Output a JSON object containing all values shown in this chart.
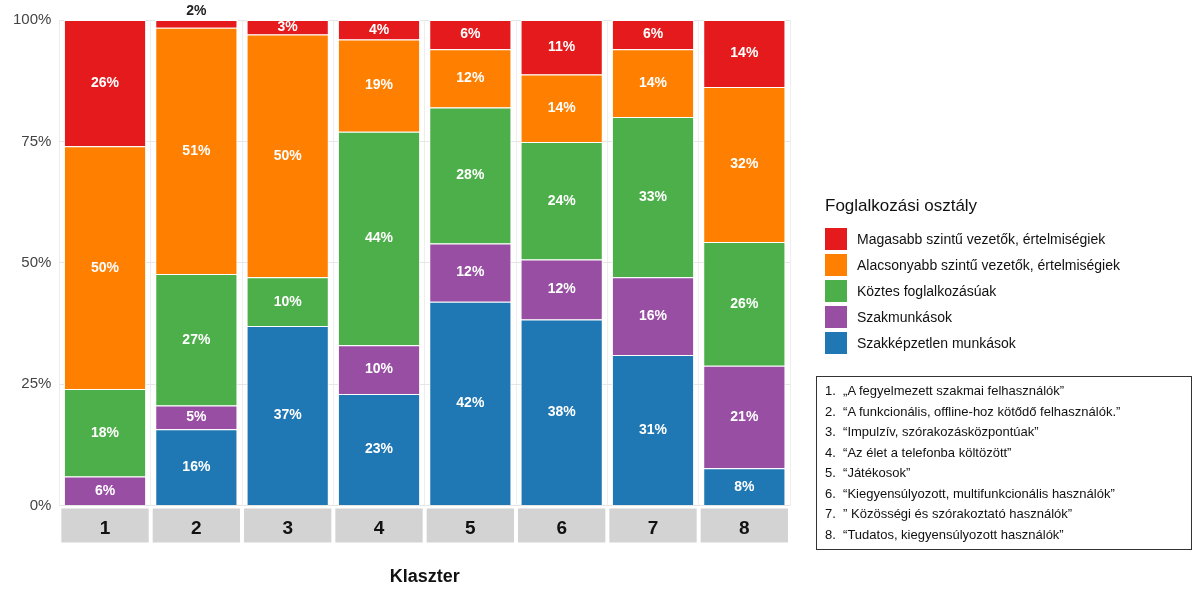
{
  "chart_data": {
    "type": "bar",
    "stacked": true,
    "xlabel": "Klaszter",
    "legend_title": "Foglalkozási osztály",
    "legend": "right",
    "categories": [
      "1",
      "2",
      "3",
      "4",
      "5",
      "6",
      "7",
      "8"
    ],
    "ylim": [
      0,
      100
    ],
    "yticks": [
      {
        "value": 0,
        "label": "0%"
      },
      {
        "value": 25,
        "label": "25%"
      },
      {
        "value": 50,
        "label": "50%"
      },
      {
        "value": 75,
        "label": "75%"
      },
      {
        "value": 100,
        "label": "100%"
      }
    ],
    "grid": true,
    "series": [
      {
        "name": "Szakképzetlen munkások",
        "color": "#1f77b4",
        "values": [
          0,
          15.7,
          37,
          23,
          42,
          38.3,
          31,
          7.7
        ],
        "value_labels": [
          null,
          "16%",
          "37%",
          "23%",
          "42%",
          "38%",
          "31%",
          "8%"
        ]
      },
      {
        "name": "Szakmunkások",
        "color": "#984ea3",
        "values": [
          6,
          4.9,
          0,
          10,
          12,
          12.4,
          16,
          21.1
        ],
        "value_labels": [
          "6%",
          "5%",
          null,
          "10%",
          "12%",
          "12%",
          "16%",
          "21%"
        ]
      },
      {
        "name": "Köztes foglalkozásúak",
        "color": "#4daf4a",
        "values": [
          18,
          27.1,
          10,
          44,
          28,
          24.2,
          33,
          25.5
        ],
        "value_labels": [
          "18%",
          "27%",
          "10%",
          "44%",
          "28%",
          "24%",
          "33%",
          "26%"
        ]
      },
      {
        "name": "Alacsonyabb szintű vezetők, értelmiségiek",
        "color": "#ff7f00",
        "values": [
          50,
          50.7,
          50,
          19,
          12,
          13.9,
          14,
          31.9
        ],
        "value_labels": [
          "50%",
          "51%",
          "50%",
          "19%",
          "12%",
          "14%",
          "14%",
          "32%"
        ]
      },
      {
        "name": "Magasabb szintű vezetők, értelmiségiek",
        "color": "#e41a1c",
        "values": [
          26,
          1.6,
          3,
          4,
          6,
          11.2,
          6,
          13.8
        ],
        "value_labels": [
          "26%",
          "2%",
          "3%",
          "4%",
          "6%",
          "11%",
          "6%",
          "14%"
        ]
      }
    ],
    "annotations": [
      "1.  „A fegyelmezett szakmai felhasználók”",
      "2.  “A funkcionális, offline-hoz kötődő felhasználók.”",
      "3.  “Impulzív, szórakozásközpontúak”",
      "4.  “Az élet a telefonba költözött”",
      "5.  “Játékosok”",
      "6.  “Kiegyensúlyozott, multifunkcionális használók”",
      "7.  ” Közösségi és szórakoztató használók”",
      "8.  “Tudatos, kiegyensúlyozott használók”"
    ]
  }
}
